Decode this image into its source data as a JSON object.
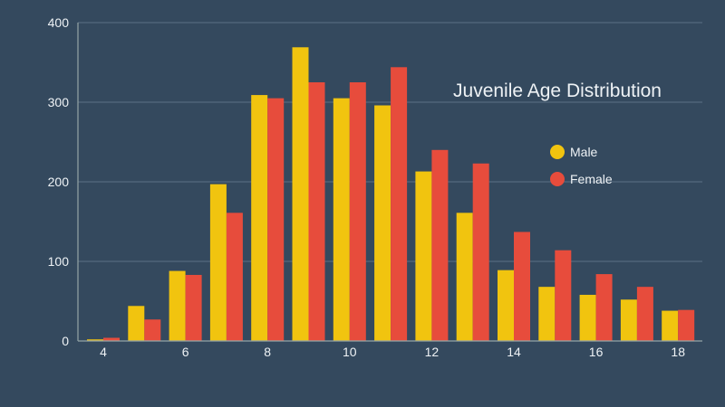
{
  "chart_data": {
    "type": "bar",
    "title": "Juvenile Age Distribution",
    "categories": [
      "4",
      "5",
      "6",
      "7",
      "8",
      "9",
      "10",
      "11",
      "12",
      "13",
      "14",
      "15",
      "16",
      "17",
      "18"
    ],
    "x_tick_labels": [
      "4",
      "6",
      "8",
      "10",
      "12",
      "14",
      "16",
      "18"
    ],
    "y_ticks": [
      "0",
      "100",
      "200",
      "300",
      "400"
    ],
    "ylim": [
      0,
      400
    ],
    "xlabel": "",
    "ylabel": "",
    "grid": true,
    "legend_position": "right",
    "series": [
      {
        "name": "Male",
        "color": "#f1c40f",
        "values": [
          2,
          44,
          88,
          197,
          309,
          369,
          305,
          296,
          213,
          161,
          89,
          68,
          58,
          52,
          38
        ]
      },
      {
        "name": "Female",
        "color": "#e74c3c",
        "values": [
          4,
          27,
          83,
          161,
          305,
          325,
          325,
          344,
          240,
          223,
          137,
          114,
          84,
          68,
          39
        ]
      }
    ]
  },
  "colors": {
    "background": "#34495e",
    "grid": "#5d7185",
    "axis": "#95a5a6",
    "text": "#eef2f5"
  }
}
